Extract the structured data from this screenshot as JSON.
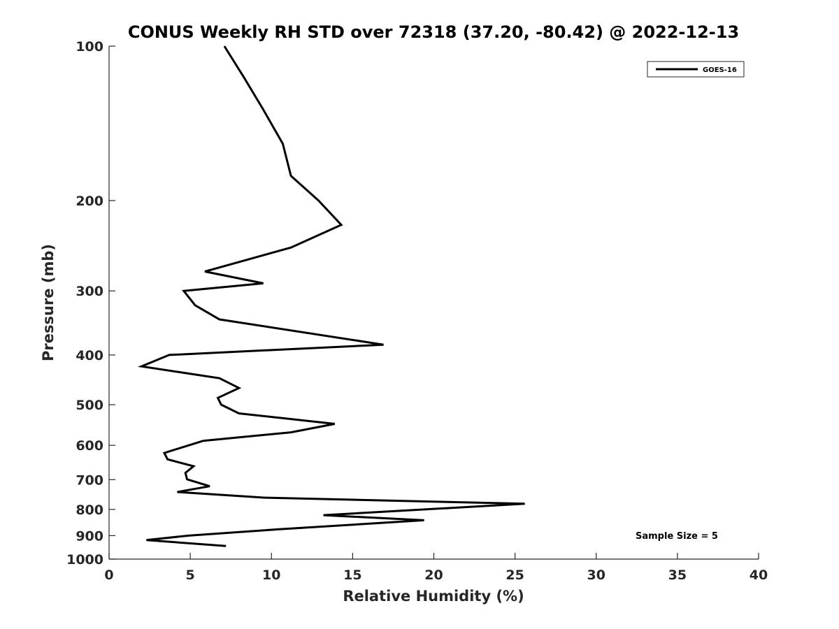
{
  "chart_data": {
    "type": "line",
    "title": "CONUS Weekly RH STD over 72318 (37.20, -80.42) @ 2022-12-13",
    "xlabel": "Relative Humidity (%)",
    "ylabel": "Pressure (mb)",
    "xlim": [
      0,
      40
    ],
    "ylim": [
      100,
      1000
    ],
    "y_scale": "log",
    "y_reversed": true,
    "grid": false,
    "legend_position": "top-right",
    "x_ticks": [
      0,
      5,
      10,
      15,
      20,
      25,
      30,
      35,
      40
    ],
    "x_tick_labels": [
      "0",
      "5",
      "10",
      "15",
      "20",
      "25",
      "30",
      "35",
      "40"
    ],
    "y_ticks": [
      100,
      200,
      300,
      400,
      500,
      600,
      700,
      800,
      900,
      1000
    ],
    "y_tick_labels": [
      "100",
      "200",
      "300",
      "400",
      "500",
      "600",
      "700",
      "800",
      "900",
      "1000"
    ],
    "series": [
      {
        "name": "GOES-16",
        "color": "#000000",
        "points": [
          {
            "x": 7.1,
            "y": 100
          },
          {
            "x": 8.3,
            "y": 115
          },
          {
            "x": 9.5,
            "y": 133
          },
          {
            "x": 10.7,
            "y": 155
          },
          {
            "x": 11.2,
            "y": 179
          },
          {
            "x": 12.9,
            "y": 200
          },
          {
            "x": 14.3,
            "y": 223
          },
          {
            "x": 11.2,
            "y": 247
          },
          {
            "x": 5.9,
            "y": 275
          },
          {
            "x": 9.5,
            "y": 290
          },
          {
            "x": 4.6,
            "y": 300
          },
          {
            "x": 5.3,
            "y": 320
          },
          {
            "x": 6.8,
            "y": 341
          },
          {
            "x": 16.9,
            "y": 382
          },
          {
            "x": 3.7,
            "y": 400
          },
          {
            "x": 2.0,
            "y": 421
          },
          {
            "x": 6.8,
            "y": 444
          },
          {
            "x": 8.0,
            "y": 464
          },
          {
            "x": 6.7,
            "y": 485
          },
          {
            "x": 6.9,
            "y": 500
          },
          {
            "x": 8.0,
            "y": 520
          },
          {
            "x": 13.9,
            "y": 545
          },
          {
            "x": 11.2,
            "y": 566
          },
          {
            "x": 5.8,
            "y": 588
          },
          {
            "x": 3.4,
            "y": 621
          },
          {
            "x": 3.6,
            "y": 639
          },
          {
            "x": 5.2,
            "y": 659
          },
          {
            "x": 4.7,
            "y": 679
          },
          {
            "x": 4.8,
            "y": 699
          },
          {
            "x": 6.2,
            "y": 721
          },
          {
            "x": 4.2,
            "y": 740
          },
          {
            "x": 9.6,
            "y": 759
          },
          {
            "x": 25.6,
            "y": 780
          },
          {
            "x": 13.2,
            "y": 821
          },
          {
            "x": 19.4,
            "y": 840
          },
          {
            "x": 10.4,
            "y": 875
          },
          {
            "x": 4.9,
            "y": 900
          },
          {
            "x": 2.3,
            "y": 918
          },
          {
            "x": 7.2,
            "y": 943
          }
        ]
      }
    ],
    "annotations": [
      {
        "text": "Sample Size = 5",
        "position": "bottom-right"
      }
    ]
  }
}
